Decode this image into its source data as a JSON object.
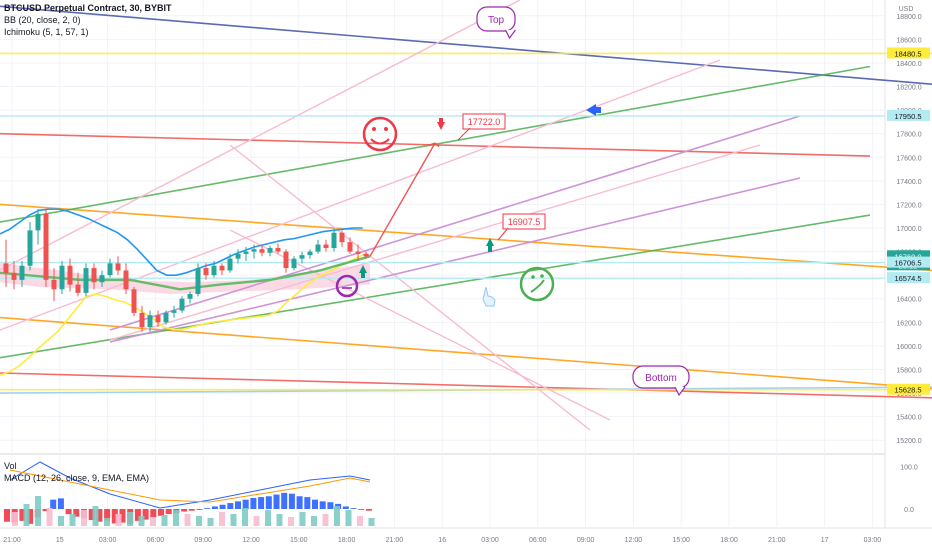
{
  "header": {
    "symbol": "BTCUSD Perpetual Contract, 30, BYBIT",
    "bb": "BB (20, close, 2, 0)",
    "ichimoku": "Ichimoku (5, 1, 57, 1)",
    "vol": "Vol",
    "macd": "MACD (12, 26, close, 9, EMA, EMA)"
  },
  "chart_data": [
    {
      "type": "line",
      "name": "price-chart",
      "currency_label": "USD",
      "ylim": [
        15100,
        18900
      ],
      "y_ticks": [
        15200,
        15400,
        15600,
        15800,
        16000,
        16200,
        16400,
        16600,
        16800,
        17000,
        17200,
        17400,
        17600,
        17800,
        18000,
        18200,
        18400,
        18600,
        18800
      ],
      "x_labels": [
        "21:00",
        "15",
        "03:00",
        "06:00",
        "09:00",
        "12:00",
        "15:00",
        "18:00",
        "21:00",
        "16",
        "03:00",
        "06:00",
        "09:00",
        "12:00",
        "15:00",
        "18:00",
        "21:00",
        "17",
        "03:00"
      ],
      "price_tags": [
        {
          "label": "18480.5",
          "value": 18480.5,
          "color": "#ffeb3b",
          "text_color": "#131722"
        },
        {
          "label": "17950.5",
          "value": 17950.5,
          "color": "#b2ebf2",
          "text_color": "#131722"
        },
        {
          "label": "16760.0",
          "value": 16760.0,
          "color": "#26a69a",
          "text_color": "#ffffff",
          "sub": "23:12"
        },
        {
          "label": "16706.5",
          "value": 16706.5,
          "color": "#b2ebf2",
          "text_color": "#131722"
        },
        {
          "label": "16574.5",
          "value": 16574.5,
          "color": "#b2ebf2",
          "text_color": "#131722"
        },
        {
          "label": "15628.5",
          "value": 15628.5,
          "color": "#ffeb3b",
          "text_color": "#131722"
        }
      ],
      "annotations": [
        {
          "text": "Top",
          "kind": "callout",
          "color": "#9c27b0"
        },
        {
          "text": "Bottom",
          "kind": "callout",
          "color": "#9c27b0"
        },
        {
          "text": "17722.0",
          "kind": "label",
          "color": "#f23645"
        },
        {
          "text": "16907.5",
          "kind": "label",
          "color": "#f23645"
        }
      ],
      "candles": [
        [
          16700,
          16900,
          16500,
          16620
        ],
        [
          16620,
          16720,
          16480,
          16560
        ],
        [
          16560,
          16720,
          16500,
          16680
        ],
        [
          16680,
          17050,
          16640,
          16980
        ],
        [
          16980,
          17160,
          16860,
          17120
        ],
        [
          17120,
          17160,
          16500,
          16560
        ],
        [
          16560,
          16660,
          16380,
          16480
        ],
        [
          16480,
          16720,
          16440,
          16680
        ],
        [
          16680,
          16740,
          16460,
          16520
        ],
        [
          16520,
          16620,
          16420,
          16450
        ],
        [
          16450,
          16700,
          16420,
          16660
        ],
        [
          16660,
          16700,
          16480,
          16540
        ],
        [
          16540,
          16640,
          16500,
          16600
        ],
        [
          16600,
          16740,
          16580,
          16700
        ],
        [
          16700,
          16760,
          16600,
          16640
        ],
        [
          16640,
          16700,
          16440,
          16480
        ],
        [
          16480,
          16500,
          16250,
          16280
        ],
        [
          16280,
          16340,
          16120,
          16160
        ],
        [
          16160,
          16300,
          16120,
          16260
        ],
        [
          16260,
          16300,
          16160,
          16200
        ],
        [
          16200,
          16300,
          16180,
          16280
        ],
        [
          16280,
          16340,
          16240,
          16300
        ],
        [
          16300,
          16420,
          16280,
          16400
        ],
        [
          16400,
          16460,
          16360,
          16440
        ],
        [
          16440,
          16700,
          16420,
          16660
        ],
        [
          16660,
          16700,
          16560,
          16600
        ],
        [
          16600,
          16720,
          16580,
          16680
        ],
        [
          16680,
          16700,
          16600,
          16640
        ],
        [
          16640,
          16780,
          16620,
          16740
        ],
        [
          16740,
          16820,
          16700,
          16780
        ],
        [
          16780,
          16840,
          16720,
          16800
        ],
        [
          16800,
          16860,
          16740,
          16820
        ],
        [
          16820,
          16860,
          16760,
          16790
        ],
        [
          16790,
          16850,
          16760,
          16830
        ],
        [
          16830,
          16870,
          16780,
          16800
        ],
        [
          16800,
          16820,
          16620,
          16660
        ],
        [
          16660,
          16760,
          16640,
          16740
        ],
        [
          16740,
          16800,
          16700,
          16770
        ],
        [
          16770,
          16820,
          16740,
          16800
        ],
        [
          16800,
          16900,
          16780,
          16860
        ],
        [
          16860,
          16900,
          16800,
          16830
        ],
        [
          16830,
          17000,
          16800,
          16960
        ],
        [
          16960,
          16980,
          16840,
          16880
        ],
        [
          16880,
          16920,
          16780,
          16800
        ],
        [
          16800,
          16860,
          16720,
          16780
        ],
        [
          16780,
          16800,
          16740,
          16760
        ]
      ],
      "bb_upper": [
        16950,
        16990,
        17050,
        17110,
        17150,
        17160,
        17160,
        17140,
        17110,
        17080,
        17040,
        17000,
        16960,
        16900,
        16820,
        16730,
        16640,
        16600,
        16600,
        16620,
        16650,
        16680,
        16700,
        16740,
        16780,
        16810,
        16840,
        16860,
        16880,
        16900,
        16910,
        16930,
        16950,
        16970,
        16980,
        16990,
        17000,
        17000
      ],
      "ichimoku_lag": [
        15750,
        15780,
        15830,
        15900,
        15980,
        16050,
        16120,
        16220,
        16320,
        16420,
        16440,
        16420,
        16390,
        16370,
        16330,
        16280,
        16230,
        16160,
        16140,
        16140,
        16160,
        16180,
        16200,
        16210,
        16220,
        16230,
        16240,
        16250,
        16260,
        16300,
        16380,
        16450,
        16520,
        16580,
        16620,
        16660,
        16700,
        16740,
        16780
      ],
      "trendlines": [
        {
          "color": "#3f51a5",
          "from": [
            0,
            18880
          ],
          "to": [
            932,
            18220
          ]
        },
        {
          "color": "#ffeb3b",
          "from": [
            0,
            18480.5
          ],
          "to": [
            932,
            18480.5
          ]
        },
        {
          "color": "#ef5350",
          "from": [
            0,
            17800
          ],
          "to": [
            870,
            17610
          ]
        },
        {
          "color": "#ff9800",
          "from": [
            0,
            17200
          ],
          "to": [
            932,
            16640
          ]
        },
        {
          "color": "#ff9800",
          "from": [
            0,
            16240
          ],
          "to": [
            932,
            15640
          ]
        },
        {
          "color": "#ef5350",
          "from": [
            0,
            15770
          ],
          "to": [
            932,
            15560
          ]
        },
        {
          "color": "#90caf9",
          "from": [
            0,
            15600
          ],
          "to": [
            932,
            15650
          ]
        },
        {
          "color": "#ffeb3b",
          "from": [
            0,
            15628.5
          ],
          "to": [
            932,
            15628.5
          ]
        },
        {
          "color": "#4caf50",
          "from": [
            0,
            17050
          ],
          "to": [
            870,
            18370
          ]
        },
        {
          "color": "#4caf50",
          "from": [
            0,
            15900
          ],
          "to": [
            870,
            17110
          ]
        }
      ]
    },
    {
      "type": "bar",
      "name": "macd-pane",
      "ylim": [
        -40,
        120
      ],
      "y_ticks": [
        0.0,
        100.0
      ],
      "histogram": [
        -30,
        -32,
        -28,
        -35,
        -20,
        -5,
        22,
        25,
        -12,
        -18,
        -22,
        -26,
        -30,
        -28,
        -34,
        -32,
        -36,
        -28,
        -25,
        -20,
        -16,
        -12,
        -10,
        -6,
        -4,
        -2,
        2,
        6,
        10,
        14,
        18,
        22,
        26,
        28,
        30,
        34,
        38,
        36,
        30,
        28,
        22,
        18,
        16,
        12,
        6,
        2,
        -2,
        -4
      ]
    }
  ]
}
